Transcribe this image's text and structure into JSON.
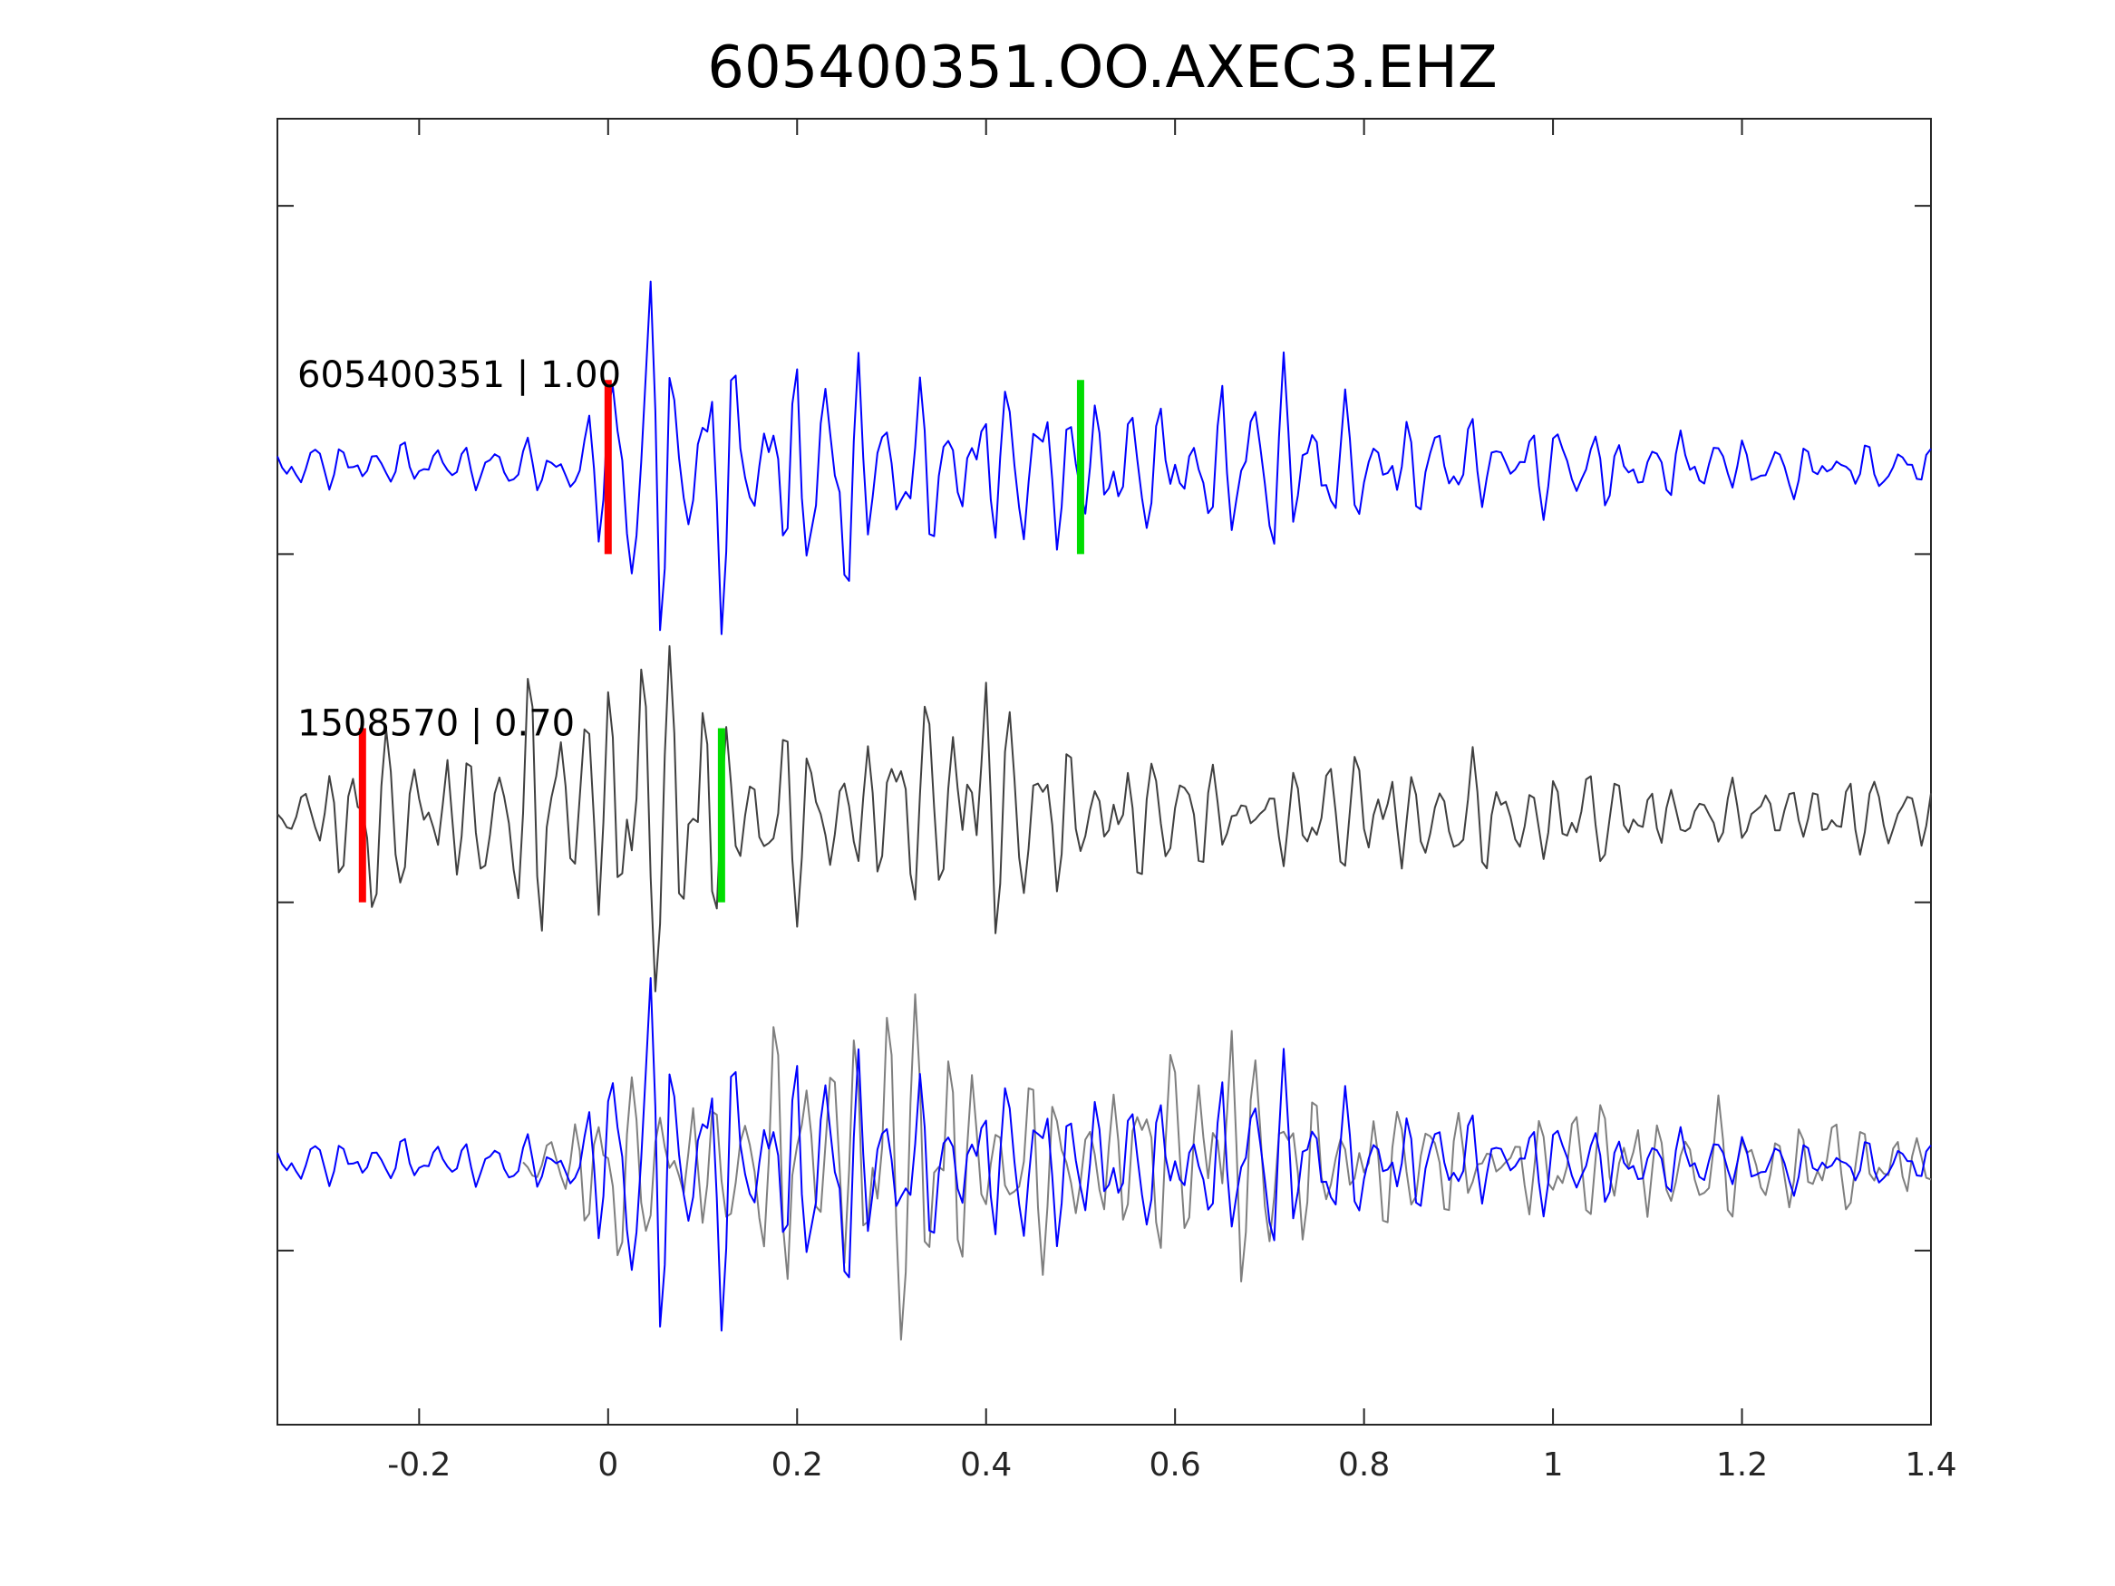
{
  "chart_data": {
    "type": "line",
    "title": "605400351.OO.AXEC3.EHZ",
    "xlabel": "",
    "ylabel": "",
    "xlim": [
      -0.35,
      1.4
    ],
    "xticks": [
      -0.2,
      0,
      0.2,
      0.4,
      0.6,
      0.8,
      1,
      1.2,
      1.4
    ],
    "xtick_labels": [
      "-0.2",
      "0",
      "0.2",
      "0.4",
      "0.6",
      "0.8",
      "1",
      "1.2",
      "1.4"
    ],
    "ylim": [
      -0.5,
      7
    ],
    "yticks": [
      0.5,
      2.5,
      4.5,
      6.5
    ],
    "grid": false,
    "sample_interval": 0.005,
    "traces": [
      {
        "label": "605400351 | 1.00",
        "color": "#0000ff",
        "offset": 5,
        "start_x": -0.35,
        "picks": [
          {
            "x": 0.0,
            "color": "#ff0000"
          },
          {
            "x": 0.5,
            "color": "#00dd00"
          }
        ],
        "envelope": [
          [
            -0.35,
            0.12
          ],
          [
            -0.05,
            0.15
          ],
          [
            0.0,
            0.5
          ],
          [
            0.03,
            1.0
          ],
          [
            0.09,
            1.0
          ],
          [
            0.15,
            0.5
          ],
          [
            0.25,
            0.8
          ],
          [
            0.3,
            0.45
          ],
          [
            0.5,
            0.45
          ],
          [
            0.6,
            0.3
          ],
          [
            0.7,
            0.6
          ],
          [
            0.8,
            0.3
          ],
          [
            1.0,
            0.25
          ],
          [
            1.2,
            0.15
          ],
          [
            1.4,
            0.13
          ]
        ],
        "components": [
          [
            31,
            0.0
          ],
          [
            45,
            1.2
          ],
          [
            60,
            2.1
          ],
          [
            22,
            0.7
          ]
        ]
      },
      {
        "label": "1508570 | 0.70",
        "color": "#404040",
        "offset": 3,
        "start_x": -0.35,
        "picks": [
          {
            "x": -0.26,
            "color": "#ff0000"
          },
          {
            "x": 0.12,
            "color": "#00dd00"
          }
        ],
        "envelope": [
          [
            -0.35,
            0.12
          ],
          [
            -0.3,
            0.25
          ],
          [
            -0.26,
            0.6
          ],
          [
            -0.2,
            0.4
          ],
          [
            -0.1,
            0.45
          ],
          [
            -0.06,
            1.0
          ],
          [
            0.0,
            0.9
          ],
          [
            0.05,
            0.95
          ],
          [
            0.1,
            0.9
          ],
          [
            0.15,
            0.5
          ],
          [
            0.3,
            0.45
          ],
          [
            0.4,
            0.9
          ],
          [
            0.45,
            0.5
          ],
          [
            0.6,
            0.3
          ],
          [
            0.7,
            0.25
          ],
          [
            0.8,
            0.35
          ],
          [
            1.0,
            0.3
          ],
          [
            1.2,
            0.15
          ],
          [
            1.3,
            0.25
          ],
          [
            1.4,
            0.15
          ]
        ],
        "components": [
          [
            33,
            0.4
          ],
          [
            47,
            1.7
          ],
          [
            26,
            2.6
          ],
          [
            58,
            0.9
          ]
        ]
      }
    ],
    "overlay": {
      "offset": 1,
      "series": [
        {
          "ref_trace": 1,
          "color": "#7f7f7f",
          "shift": 0.26
        },
        {
          "ref_trace": 0,
          "color": "#0000ff",
          "shift": 0
        }
      ]
    }
  }
}
